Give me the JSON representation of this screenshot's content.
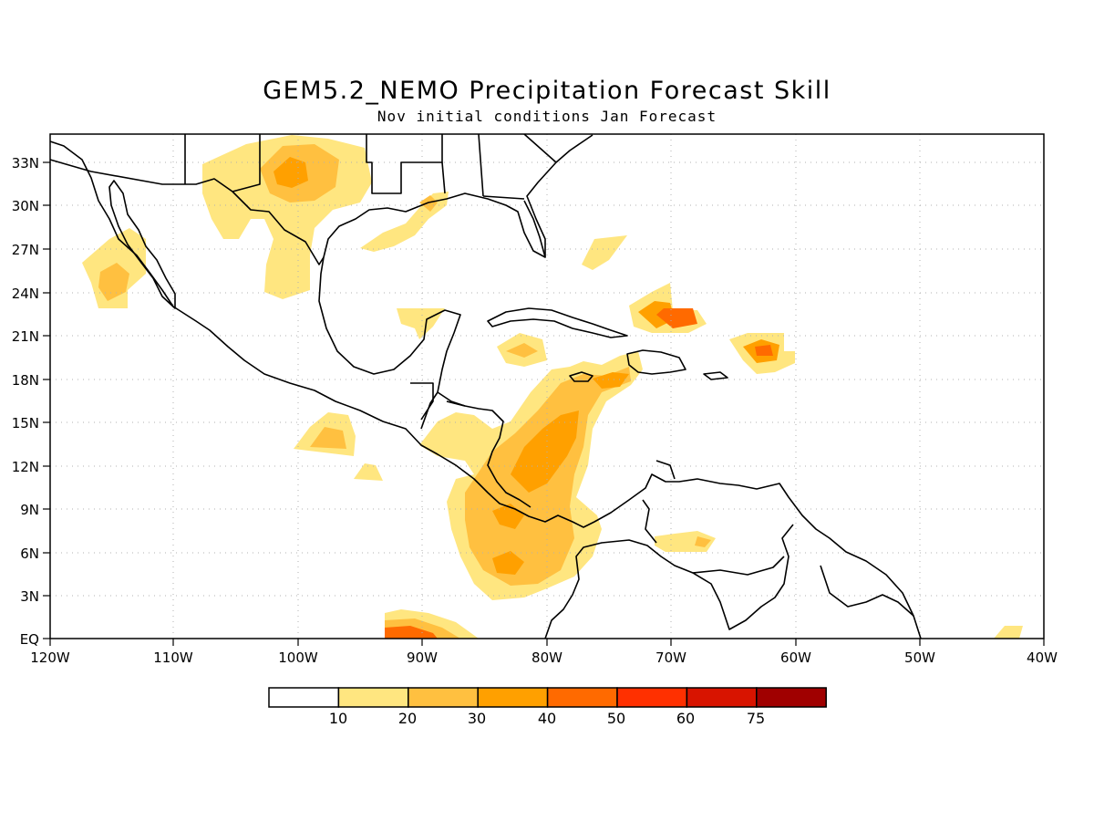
{
  "title": "GEM5.2_NEMO Precipitation Forecast Skill",
  "subtitle": "Nov initial conditions  Jan Forecast",
  "map": {
    "lon_range": [
      -120,
      -40
    ],
    "lat_range": [
      0,
      35
    ],
    "grid": "dotted",
    "x_tick_labels": [
      "120W",
      "110W",
      "100W",
      "90W",
      "80W",
      "70W",
      "60W",
      "50W",
      "40W"
    ],
    "y_tick_labels": [
      "EQ",
      "3N",
      "6N",
      "9N",
      "12N",
      "15N",
      "18N",
      "21N",
      "24N",
      "27N",
      "30N",
      "33N"
    ]
  },
  "legend": {
    "levels": [
      "10",
      "20",
      "30",
      "40",
      "50",
      "60",
      "75"
    ],
    "colors": [
      "#ffffff",
      "#ffe680",
      "#ffc040",
      "#ffa000",
      "#ff6a00",
      "#ff3000",
      "#d81400",
      "#a00000"
    ]
  }
}
